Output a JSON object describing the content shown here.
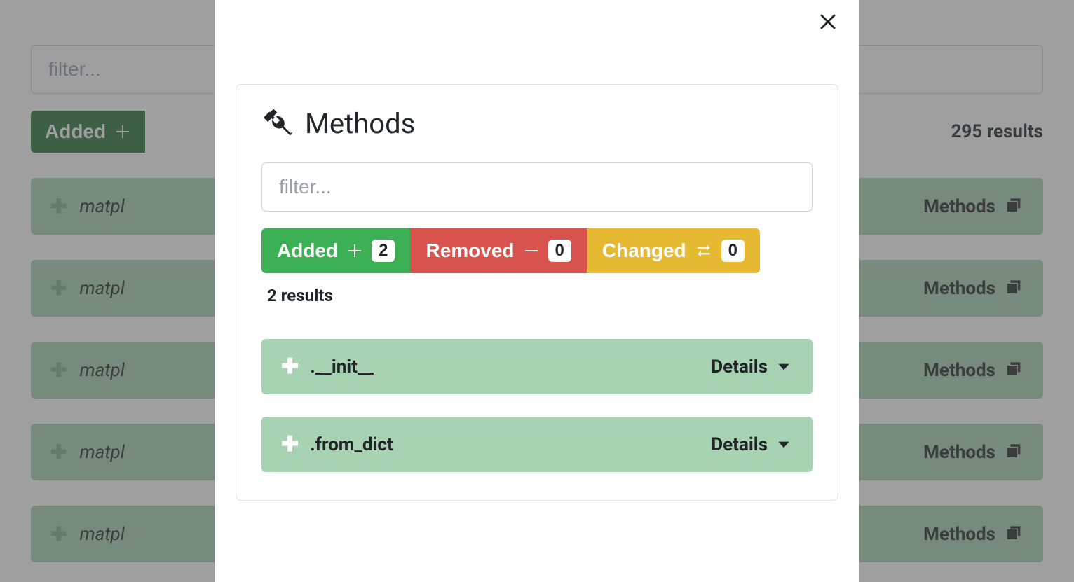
{
  "colors": {
    "overlay": "rgba(80,80,80,0.55)",
    "card_border": "#dee2e6",
    "text": "#212529",
    "muted": "#9aa1a8",
    "item_bg": "#a8d3b3",
    "bg_item_bg": "#a7d2b2",
    "added": "#3cb054",
    "added_dark": "#277337",
    "removed": "#d8524e",
    "changed": "#e6b933",
    "count_bg": "#ffffff"
  },
  "background": {
    "filter_placeholder": "filter...",
    "added_label": "Added",
    "results_label": "295 results",
    "item_prefix": "matpl",
    "methods_label": "Methods",
    "items_count": 5
  },
  "modal": {
    "title": "Methods",
    "filter_placeholder": "filter...",
    "pills": {
      "added": {
        "label": "Added",
        "count": "2"
      },
      "removed": {
        "label": "Removed",
        "count": "0"
      },
      "changed": {
        "label": "Changed",
        "count": "0"
      }
    },
    "results_label": "2 results",
    "details_label": "Details",
    "methods": [
      {
        "name": ".__init__"
      },
      {
        "name": ".from_dict"
      }
    ]
  }
}
